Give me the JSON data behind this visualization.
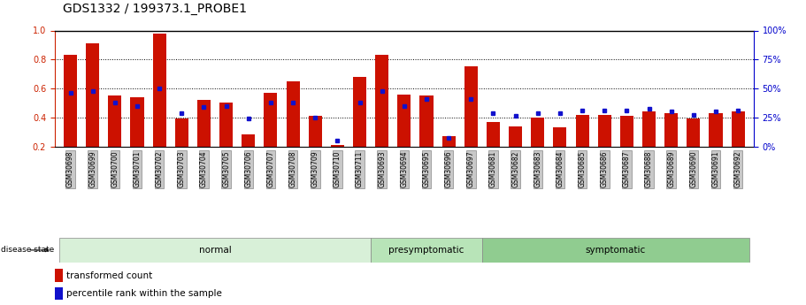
{
  "title": "GDS1332 / 199373.1_PROBE1",
  "samples": [
    "GSM30698",
    "GSM30699",
    "GSM30700",
    "GSM30701",
    "GSM30702",
    "GSM30703",
    "GSM30704",
    "GSM30705",
    "GSM30706",
    "GSM30707",
    "GSM30708",
    "GSM30709",
    "GSM30710",
    "GSM30711",
    "GSM30693",
    "GSM30694",
    "GSM30695",
    "GSM30696",
    "GSM30697",
    "GSM30681",
    "GSM30682",
    "GSM30683",
    "GSM30684",
    "GSM30685",
    "GSM30686",
    "GSM30687",
    "GSM30688",
    "GSM30689",
    "GSM30690",
    "GSM30691",
    "GSM30692"
  ],
  "red_values": [
    0.83,
    0.91,
    0.55,
    0.54,
    0.98,
    0.39,
    0.52,
    0.5,
    0.28,
    0.57,
    0.65,
    0.41,
    0.21,
    0.68,
    0.83,
    0.56,
    0.55,
    0.27,
    0.75,
    0.37,
    0.34,
    0.4,
    0.33,
    0.42,
    0.42,
    0.41,
    0.44,
    0.43,
    0.39,
    0.43,
    0.44
  ],
  "blue_values": [
    0.57,
    0.58,
    0.5,
    0.48,
    0.6,
    0.43,
    0.47,
    0.48,
    0.39,
    0.5,
    0.5,
    0.4,
    0.24,
    0.5,
    0.58,
    0.48,
    0.53,
    0.26,
    0.53,
    0.43,
    0.41,
    0.43,
    0.43,
    0.45,
    0.45,
    0.45,
    0.46,
    0.44,
    0.42,
    0.44,
    0.45
  ],
  "groups": [
    {
      "label": "normal",
      "start": 0,
      "end": 14,
      "color": "#d8f0d8"
    },
    {
      "label": "presymptomatic",
      "start": 14,
      "end": 19,
      "color": "#b8e4b8"
    },
    {
      "label": "symptomatic",
      "start": 19,
      "end": 31,
      "color": "#90cc90"
    }
  ],
  "ylim_left": [
    0.2,
    1.0
  ],
  "ylim_right": [
    0,
    100
  ],
  "yticks_left": [
    0.2,
    0.4,
    0.6,
    0.8,
    1.0
  ],
  "yticks_right": [
    0,
    25,
    50,
    75,
    100
  ],
  "bar_color_red": "#cc1100",
  "bar_color_blue": "#1111cc",
  "bg_color": "#ffffff",
  "title_fontsize": 10,
  "axis_label_color_left": "#cc2200",
  "axis_label_color_right": "#0000cc",
  "tick_label_bg": "#c8c8c8"
}
